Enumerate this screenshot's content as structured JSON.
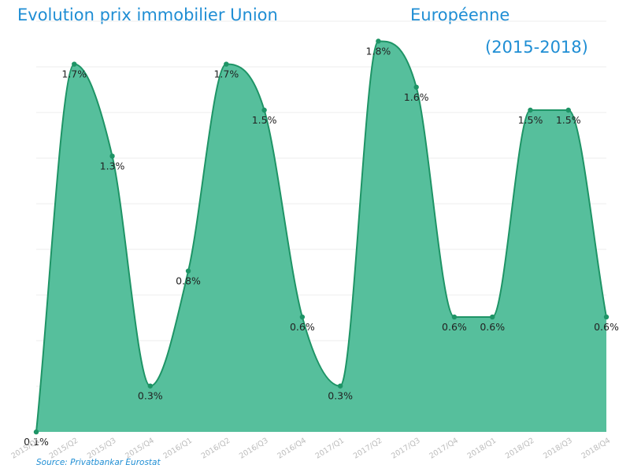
{
  "chart_data": {
    "type": "area",
    "title_lines": [
      "Evolution prix immobilier Union",
      "Européenne",
      "(2015-2018)"
    ],
    "source": "Source: Privatbankar Eurostat",
    "categories": [
      "2015/Q1",
      "2015/Q2",
      "2015/Q3",
      "2015/Q4",
      "2016/Q1",
      "2016/Q2",
      "2016/Q3",
      "2016/Q4",
      "2017/Q1",
      "2017/Q2",
      "2017/Q3",
      "2017/Q4",
      "2018/Q1",
      "2018/Q2",
      "2018/Q3",
      "2018/Q4"
    ],
    "values": [
      0.1,
      1.7,
      1.3,
      0.3,
      0.8,
      1.7,
      1.5,
      0.6,
      0.3,
      1.8,
      1.6,
      0.6,
      0.6,
      1.5,
      1.5,
      0.6
    ],
    "value_labels": [
      "0.1%",
      "1.7%",
      "1.3%",
      "0.3%",
      "0.8%",
      "1.7%",
      "1.5%",
      "0.6%",
      "0.3%",
      "1.8%",
      "1.6%",
      "0.6%",
      "0.6%",
      "1.5%",
      "1.5%",
      "0.6%"
    ],
    "ylim": [
      0,
      1.8
    ],
    "grid": true,
    "fill_color": "#56bf9c",
    "line_color": "#1e9466",
    "title_color": "#1f8ed4"
  }
}
